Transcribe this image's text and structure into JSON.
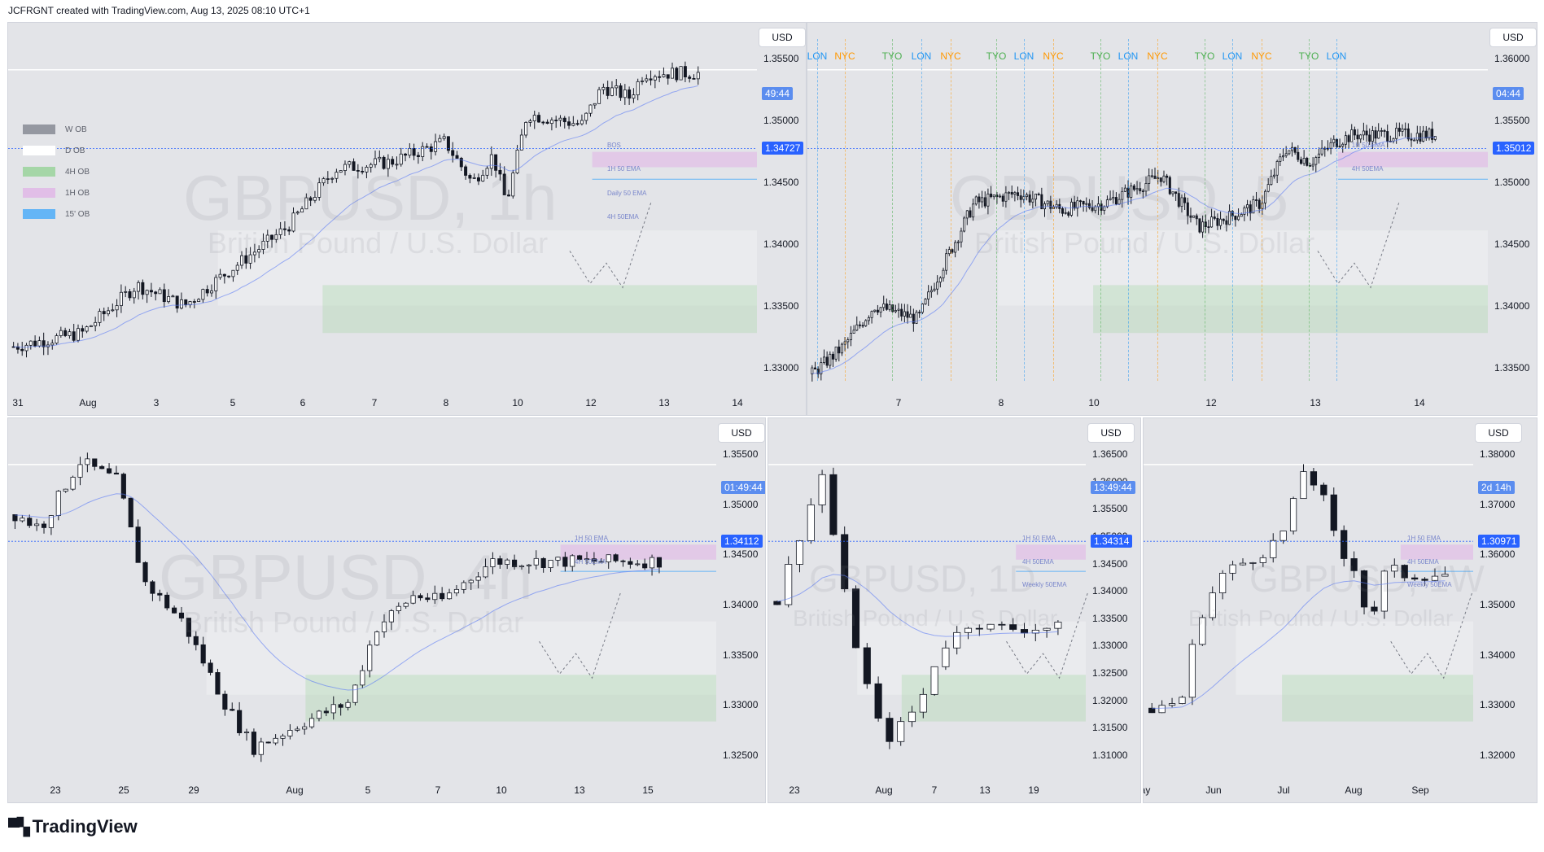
{
  "header": {
    "attribution": "JCFRGNT created with TradingView.com, Aug 13, 2025 08:10 UTC+1"
  },
  "brand": {
    "logo_icon": "tradingview-logo-icon",
    "name": "TradingView"
  },
  "colors": {
    "bg": "#e3e4e8",
    "candle_up": "#ffffff",
    "candle_down": "#131722",
    "price_tag": "#2962ff",
    "ema_1h": "#5b7cf5",
    "ob_4h": "#a5d6a7",
    "ob_1h": "#e1bee7",
    "tyo": "#4caf50",
    "lon": "#2196f3",
    "nyc": "#ff9800"
  },
  "legend": [
    {
      "label": "W OB",
      "color": "#9598a1"
    },
    {
      "label": "D OB",
      "color": "#ffffff"
    },
    {
      "label": "4H OB",
      "color": "#a5d6a7"
    },
    {
      "label": "1H OB",
      "color": "#e1bee7"
    },
    {
      "label": "15' OB",
      "color": "#64b5f6"
    }
  ],
  "sessions": [
    "LON",
    "NYC",
    "TYO",
    "LON",
    "NYC",
    "TYO",
    "LON",
    "NYC",
    "TYO",
    "LON",
    "NYC",
    "TYO",
    "LON",
    "NYC",
    "TYO",
    "LON"
  ],
  "chart_data": [
    {
      "type": "candlestick",
      "symbol": "GBPUSD",
      "watermark": "GBPUSD, 1h",
      "watermark_sub": "British Pound / U.S. Dollar",
      "currency": "USD",
      "price_tag": "1.34727",
      "countdown": "49:44",
      "y_ticks": [
        "1.35500",
        "1.35000",
        "1.34500",
        "1.34000",
        "1.33500",
        "1.33000"
      ],
      "ylim": [
        1.3265,
        1.356
      ],
      "x_ticks": [
        "31",
        "Aug",
        "3",
        "5",
        "6",
        "7",
        "8",
        "10",
        "12",
        "13",
        "14"
      ],
      "annotations": [
        "BOS",
        "1H 50 EMA",
        "Daily 50 EMA",
        "4H 50EMA"
      ]
    },
    {
      "type": "candlestick",
      "symbol": "GBPUSD",
      "watermark": "GBPUSD, 5",
      "watermark_sub": "British Pound / U.S. Dollar",
      "currency": "USD",
      "price_tag": "1.35012",
      "countdown": "04:44",
      "y_ticks": [
        "1.36000",
        "1.35500",
        "1.35000",
        "1.34500",
        "1.34000",
        "1.33500"
      ],
      "ylim": [
        1.331,
        1.364
      ],
      "x_ticks": [
        "7",
        "8",
        "10",
        "12",
        "13",
        "14"
      ],
      "annotations": [
        "1H 50 EMA",
        "4H 50EMA"
      ]
    },
    {
      "type": "candlestick",
      "symbol": "GBPUSD",
      "watermark": "GBPUSD, 4h",
      "watermark_sub": "British Pound / U.S. Dollar",
      "currency": "USD",
      "price_tag": "1.34112",
      "countdown": "01:49:44",
      "y_ticks": [
        "1.35500",
        "1.35000",
        "1.34500",
        "1.34000",
        "1.33500",
        "1.33000",
        "1.32500"
      ],
      "ylim": [
        1.322,
        1.359
      ],
      "x_ticks": [
        "23",
        "25",
        "29",
        "Aug",
        "5",
        "7",
        "10",
        "13",
        "15"
      ],
      "annotations": [
        "1H 50 EMA",
        "4H 50EMA"
      ]
    },
    {
      "type": "candlestick",
      "symbol": "GBPUSD",
      "watermark": "GBPUSD, 1D",
      "watermark_sub": "British Pound / U.S. Dollar",
      "currency": "USD",
      "price_tag": "1.34314",
      "countdown": "13:49:44",
      "y_ticks": [
        "1.36500",
        "1.36000",
        "1.35500",
        "1.35000",
        "1.34500",
        "1.34000",
        "1.33500",
        "1.33000",
        "1.32500",
        "1.32000",
        "1.31500",
        "1.31000"
      ],
      "ylim": [
        1.3085,
        1.3675
      ],
      "x_ticks": [
        "23",
        "Aug",
        "7",
        "13",
        "19"
      ],
      "annotations": [
        "1H 50 EMA",
        "4H 50EMA",
        "Weekly 50EMA"
      ]
    },
    {
      "type": "candlestick",
      "symbol": "GBPUSD",
      "watermark": "GBPUSD, 1W",
      "watermark_sub": "British Pound / U.S. Dollar",
      "currency": "USD",
      "price_tag": "1.30971",
      "countdown": "2d 14h",
      "y_ticks": [
        "1.38000",
        "1.37000",
        "1.36000",
        "1.35000",
        "1.34000",
        "1.33000",
        "1.32000"
      ],
      "ylim": [
        1.306,
        1.382
      ],
      "x_ticks": [
        "ay",
        "Jun",
        "Jul",
        "Aug",
        "Sep"
      ],
      "annotations": [
        "1H 50 EMA",
        "4H 50EMA",
        "Weekly 50EMA"
      ]
    }
  ]
}
